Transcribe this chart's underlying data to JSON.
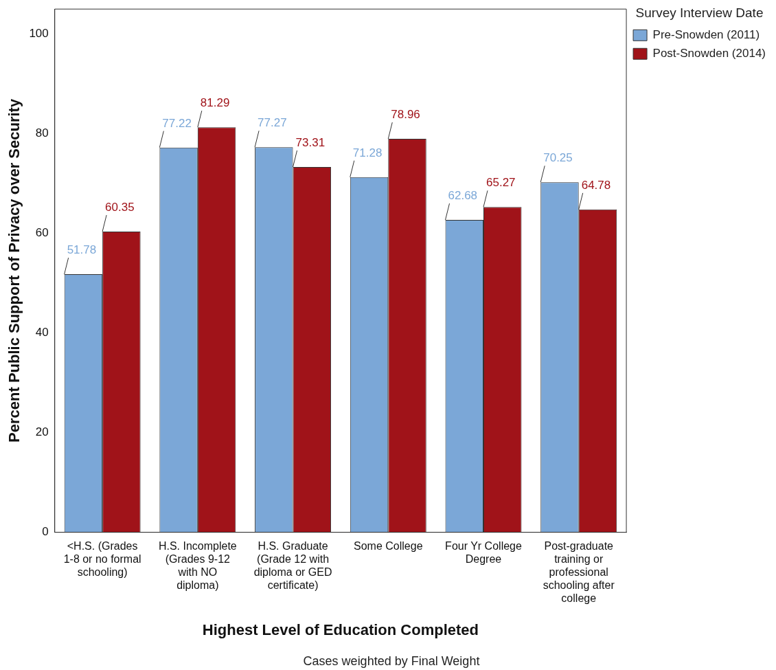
{
  "chart_data": {
    "type": "bar",
    "xlabel": "Highest Level of Education Completed",
    "ylabel": "Percent Public Support of Privacy over Security",
    "legend_title": "Survey Interview Date",
    "categories": [
      "<H.S. (Grades 1-8 or no formal schooling)",
      "H.S. Incomplete (Grades 9-12 with NO diploma)",
      "H.S. Graduate (Grade 12 with diploma or GED certificate)",
      "Some College",
      "Four Yr College Degree",
      "Post-graduate training or professional schooling after college"
    ],
    "series": [
      {
        "name": "Pre-Snowden (2011)",
        "color": "#7ba7d7",
        "values": [
          51.78,
          77.22,
          77.27,
          71.28,
          62.68,
          70.25
        ]
      },
      {
        "name": "Post-Snowden (2014)",
        "color": "#a01319",
        "values": [
          60.35,
          81.29,
          73.31,
          78.96,
          65.27,
          64.78
        ]
      }
    ],
    "ylim": [
      0,
      105
    ],
    "yticks": [
      0,
      20,
      40,
      60,
      80,
      100
    ],
    "grid": false,
    "legend": "top right",
    "data_labels": true,
    "annotations": [
      "Cases weighted by Final Weight"
    ]
  }
}
